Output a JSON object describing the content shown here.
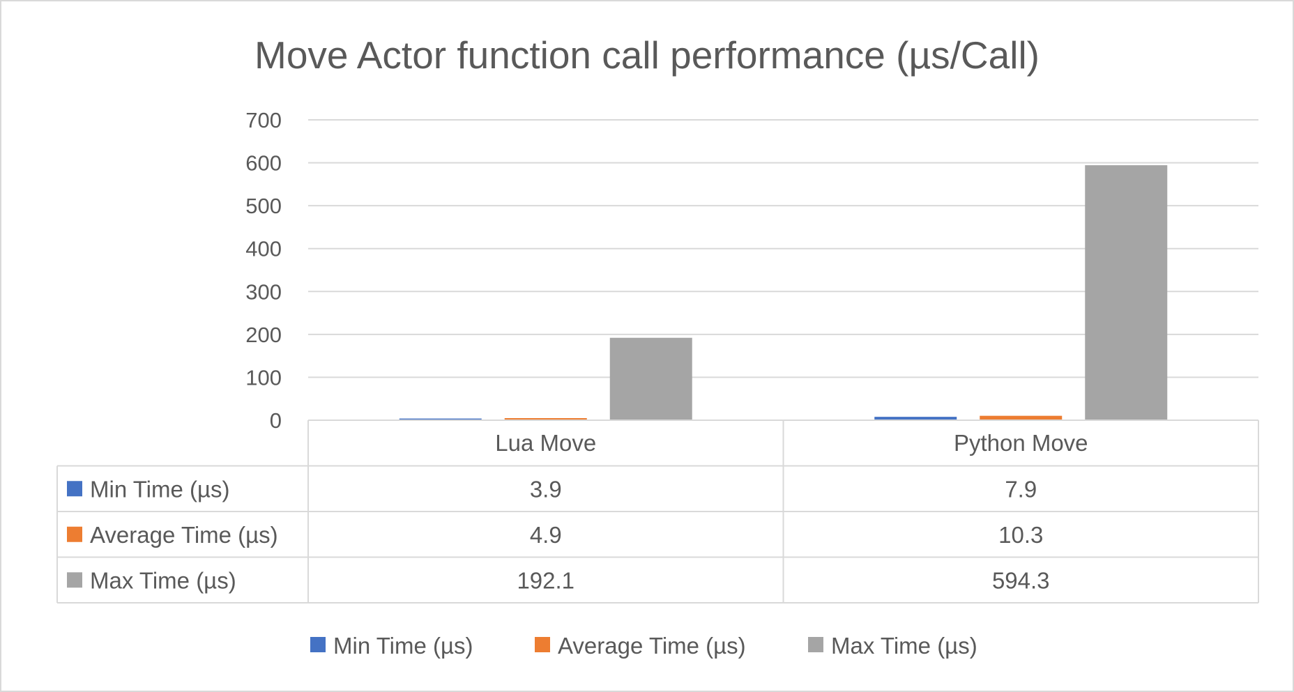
{
  "chart_data": {
    "type": "bar",
    "title": "Move Actor function call performance (µs/Call)",
    "categories": [
      "Lua Move",
      "Python Move"
    ],
    "series": [
      {
        "name": "Min Time (µs)",
        "values": [
          3.9,
          7.9
        ],
        "color": "#4472c4",
        "labels": [
          "3.9",
          "7.9"
        ]
      },
      {
        "name": "Average Time (µs)",
        "values": [
          4.9,
          10.3
        ],
        "color": "#ed7d31",
        "labels": [
          "4.9",
          "10.3"
        ]
      },
      {
        "name": "Max Time (µs)",
        "values": [
          192.1,
          594.3
        ],
        "color": "#a5a5a5",
        "labels": [
          "192.1",
          "594.3"
        ]
      }
    ],
    "ylim": [
      0,
      700
    ],
    "yticks": [
      "0",
      "100",
      "200",
      "300",
      "400",
      "500",
      "600",
      "700"
    ],
    "ytick_values": [
      0,
      100,
      200,
      300,
      400,
      500,
      600,
      700
    ],
    "grid": true,
    "data_table": true,
    "legend_position": "bottom"
  }
}
